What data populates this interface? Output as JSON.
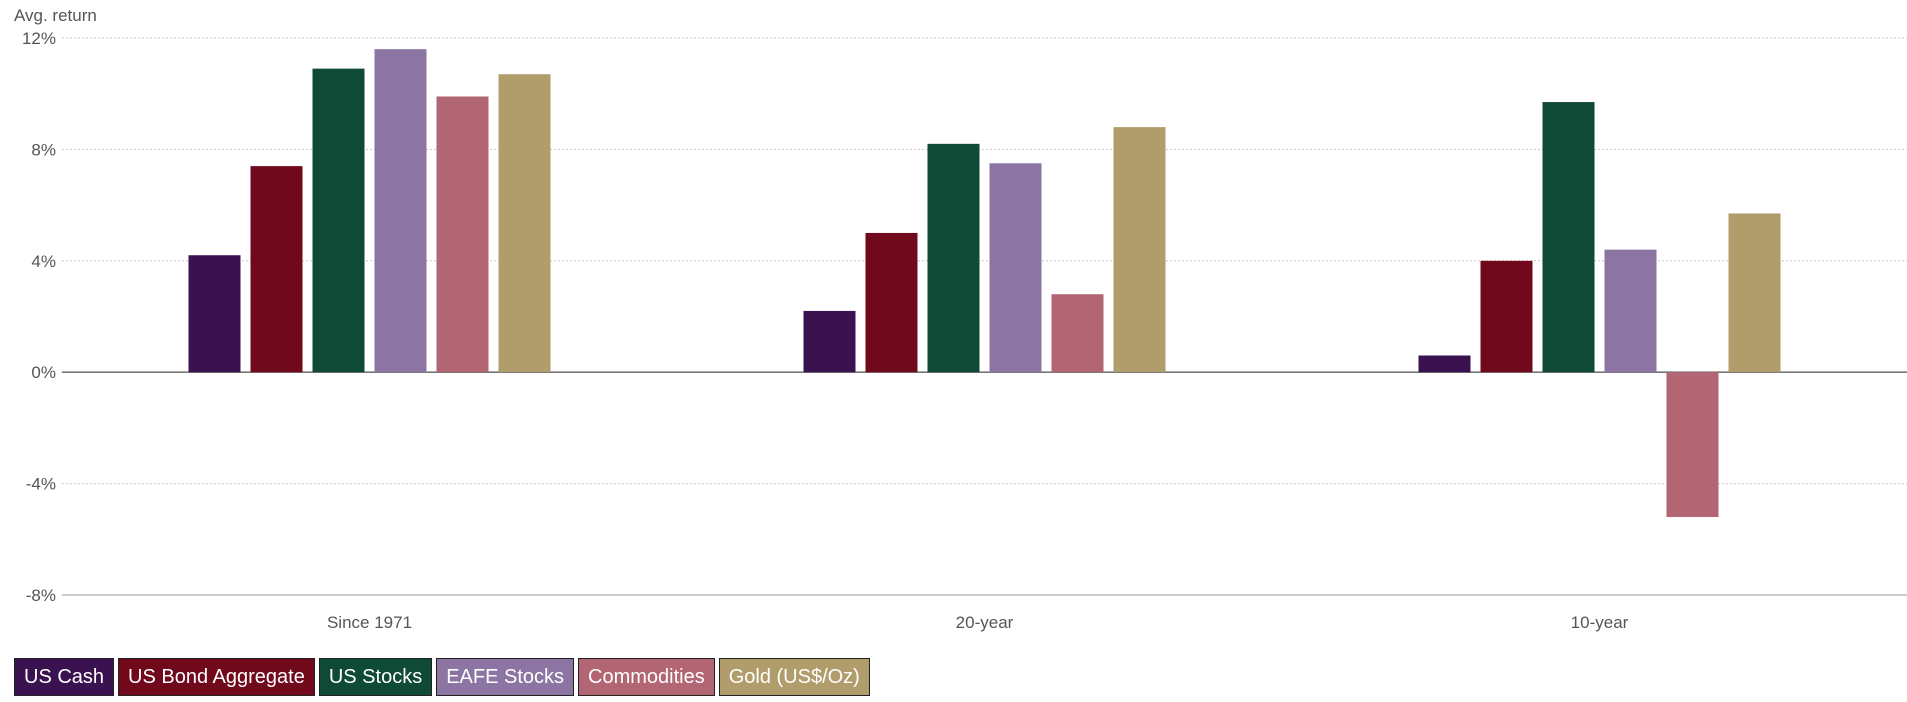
{
  "chart_data": {
    "type": "bar",
    "ylabel": "Avg. return",
    "categories": [
      "Since 1971",
      "20-year",
      "10-year"
    ],
    "ylim": [
      -8,
      12
    ],
    "yticks": [
      {
        "value": 12,
        "label": "12%"
      },
      {
        "value": 8,
        "label": "8%"
      },
      {
        "value": 4,
        "label": "4%"
      },
      {
        "value": 0,
        "label": "0%"
      },
      {
        "value": -4,
        "label": "-4%"
      },
      {
        "value": -8,
        "label": "-8%"
      }
    ],
    "grid": true,
    "legend_position": "bottom-left",
    "series": [
      {
        "name": "US Cash",
        "color": "#3b1250",
        "values": [
          4.2,
          2.2,
          0.6
        ]
      },
      {
        "name": "US Bond Aggregate",
        "color": "#71091c",
        "values": [
          7.4,
          5.0,
          4.0
        ]
      },
      {
        "name": "US Stocks",
        "color": "#0e4a35",
        "values": [
          10.9,
          8.2,
          9.7
        ]
      },
      {
        "name": "EAFE Stocks",
        "color": "#8c75a3",
        "values": [
          11.6,
          7.5,
          4.4
        ]
      },
      {
        "name": "Commodities",
        "color": "#b26573",
        "values": [
          9.9,
          2.8,
          -5.2
        ]
      },
      {
        "name": "Gold (US$/Oz)",
        "color": "#b19c6b",
        "values": [
          10.7,
          8.8,
          5.7
        ]
      }
    ]
  }
}
